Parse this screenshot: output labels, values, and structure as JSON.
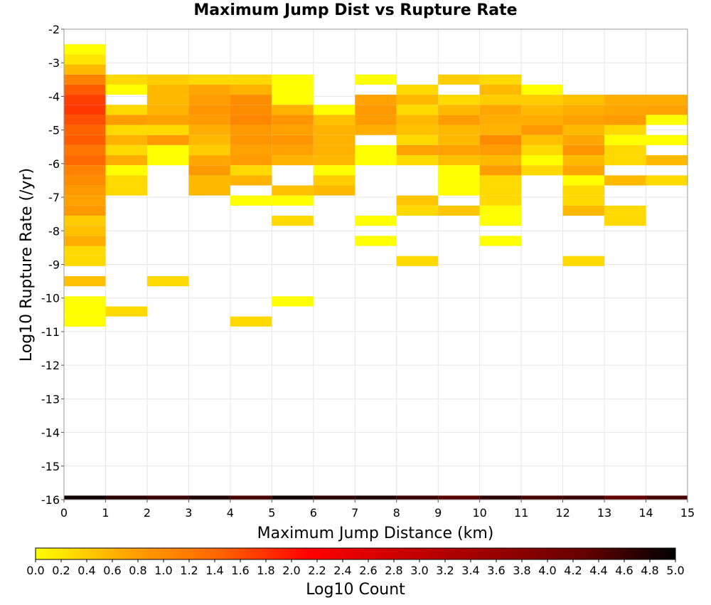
{
  "chart_data": {
    "type": "heatmap",
    "title": "Maximum Jump Dist vs Rupture Rate",
    "xlabel": "Maximum Jump Distance (km)",
    "ylabel": "Log10 Rupture Rate (/yr)",
    "xlim": [
      0,
      15
    ],
    "ylim": [
      -16,
      -2
    ],
    "x_ticks": [
      "0",
      "1",
      "2",
      "3",
      "4",
      "5",
      "6",
      "7",
      "8",
      "9",
      "10",
      "11",
      "12",
      "13",
      "14",
      "15"
    ],
    "y_ticks": [
      "-2",
      "-3",
      "-4",
      "-5",
      "-6",
      "-7",
      "-8",
      "-9",
      "-10",
      "-11",
      "-12",
      "-13",
      "-14",
      "-15",
      "-16"
    ],
    "colorbar": {
      "label": "Log10 Count",
      "min": 0.0,
      "max": 5.0,
      "ticks": [
        "0.0",
        "0.2",
        "0.4",
        "0.6",
        "0.8",
        "1.0",
        "1.2",
        "1.4",
        "1.6",
        "1.8",
        "2.0",
        "2.2",
        "2.4",
        "2.6",
        "2.8",
        "3.0",
        "3.2",
        "3.4",
        "3.6",
        "3.8",
        "4.0",
        "4.2",
        "4.4",
        "4.6",
        "4.8",
        "5.0"
      ],
      "colors": [
        "#ffff00",
        "#ffa500",
        "#ff6600",
        "#ff0000",
        "#cc0000",
        "#990000",
        "#660000",
        "#000000"
      ]
    },
    "bin_width_x": 1,
    "bin_height_y": 0.3,
    "columns": [
      {
        "x": 0,
        "cells": [
          [
            -2.6,
            0.0
          ],
          [
            -2.9,
            0.2
          ],
          [
            -3.2,
            0.55
          ],
          [
            -3.5,
            1.1
          ],
          [
            -3.8,
            1.5
          ],
          [
            -4.1,
            1.7
          ],
          [
            -4.4,
            1.75
          ],
          [
            -4.7,
            1.6
          ],
          [
            -5.0,
            1.45
          ],
          [
            -5.3,
            1.5
          ],
          [
            -5.6,
            1.25
          ],
          [
            -5.9,
            1.4
          ],
          [
            -6.2,
            1.1
          ],
          [
            -6.5,
            1.0
          ],
          [
            -6.8,
            0.85
          ],
          [
            -7.1,
            0.75
          ],
          [
            -7.4,
            0.85
          ],
          [
            -7.7,
            0.4
          ],
          [
            -8.0,
            0.5
          ],
          [
            -8.3,
            0.65
          ],
          [
            -8.6,
            0.3
          ],
          [
            -8.9,
            0.3
          ],
          [
            -9.5,
            0.5
          ],
          [
            -10.1,
            0.0
          ],
          [
            -10.4,
            0.0
          ],
          [
            -10.7,
            0.0
          ]
        ]
      },
      {
        "x": 1,
        "cells": [
          [
            -3.5,
            0.3
          ],
          [
            -3.8,
            0.0
          ],
          [
            -4.4,
            0.3
          ],
          [
            -4.7,
            0.8
          ],
          [
            -5.0,
            0.3
          ],
          [
            -5.3,
            0.6
          ],
          [
            -5.6,
            0.3
          ],
          [
            -5.9,
            0.65
          ],
          [
            -6.2,
            0.0
          ],
          [
            -6.5,
            0.3
          ],
          [
            -6.8,
            0.3
          ],
          [
            -10.4,
            0.3
          ]
        ]
      },
      {
        "x": 2,
        "cells": [
          [
            -3.5,
            0.4
          ],
          [
            -3.8,
            0.55
          ],
          [
            -4.1,
            0.55
          ],
          [
            -4.4,
            0.6
          ],
          [
            -4.7,
            0.75
          ],
          [
            -5.0,
            0.3
          ],
          [
            -5.3,
            0.85
          ],
          [
            -5.6,
            0.0
          ],
          [
            -5.9,
            0.0
          ],
          [
            -9.5,
            0.3
          ]
        ]
      },
      {
        "x": 3,
        "cells": [
          [
            -3.5,
            0.3
          ],
          [
            -3.8,
            0.7
          ],
          [
            -4.1,
            0.8
          ],
          [
            -4.4,
            0.9
          ],
          [
            -4.7,
            0.8
          ],
          [
            -5.0,
            0.65
          ],
          [
            -5.3,
            0.55
          ],
          [
            -5.6,
            0.4
          ],
          [
            -5.9,
            0.7
          ],
          [
            -6.2,
            0.85
          ],
          [
            -6.5,
            0.55
          ],
          [
            -6.8,
            0.55
          ]
        ]
      },
      {
        "x": 4,
        "cells": [
          [
            -3.5,
            0.3
          ],
          [
            -3.8,
            0.6
          ],
          [
            -4.1,
            1.0
          ],
          [
            -4.4,
            1.0
          ],
          [
            -4.7,
            1.05
          ],
          [
            -5.0,
            0.85
          ],
          [
            -5.3,
            0.9
          ],
          [
            -5.6,
            0.75
          ],
          [
            -5.9,
            0.8
          ],
          [
            -6.2,
            0.3
          ],
          [
            -6.5,
            0.6
          ],
          [
            -7.1,
            0.0
          ],
          [
            -10.7,
            0.3
          ]
        ]
      },
      {
        "x": 5,
        "cells": [
          [
            -3.5,
            0.0
          ],
          [
            -3.8,
            0.0
          ],
          [
            -4.1,
            0.0
          ],
          [
            -4.4,
            0.6
          ],
          [
            -4.7,
            0.9
          ],
          [
            -5.0,
            0.75
          ],
          [
            -5.3,
            0.9
          ],
          [
            -5.6,
            0.75
          ],
          [
            -5.9,
            0.6
          ],
          [
            -6.8,
            0.5
          ],
          [
            -7.1,
            0.0
          ],
          [
            -7.7,
            0.3
          ],
          [
            -10.1,
            0.0
          ]
        ]
      },
      {
        "x": 6,
        "cells": [
          [
            -4.4,
            0.0
          ],
          [
            -4.7,
            0.5
          ],
          [
            -5.0,
            0.6
          ],
          [
            -5.3,
            0.6
          ],
          [
            -5.6,
            0.6
          ],
          [
            -5.9,
            0.55
          ],
          [
            -6.2,
            0.0
          ],
          [
            -6.5,
            0.4
          ],
          [
            -6.8,
            0.55
          ]
        ]
      },
      {
        "x": 7,
        "cells": [
          [
            -3.5,
            0.0
          ],
          [
            -4.1,
            0.75
          ],
          [
            -4.4,
            0.85
          ],
          [
            -4.7,
            0.8
          ],
          [
            -5.0,
            0.65
          ],
          [
            -5.6,
            0.0
          ],
          [
            -5.9,
            0.0
          ],
          [
            -7.7,
            0.0
          ],
          [
            -8.3,
            0.0
          ]
        ]
      },
      {
        "x": 8,
        "cells": [
          [
            -3.8,
            0.3
          ],
          [
            -4.1,
            0.55
          ],
          [
            -4.4,
            0.3
          ],
          [
            -4.7,
            0.55
          ],
          [
            -5.0,
            0.5
          ],
          [
            -5.3,
            0.3
          ],
          [
            -5.6,
            0.75
          ],
          [
            -5.9,
            0.3
          ],
          [
            -7.1,
            0.45
          ],
          [
            -7.4,
            0.3
          ],
          [
            -8.9,
            0.3
          ]
        ]
      },
      {
        "x": 9,
        "cells": [
          [
            -3.5,
            0.4
          ],
          [
            -4.1,
            0.3
          ],
          [
            -4.4,
            0.55
          ],
          [
            -4.7,
            0.8
          ],
          [
            -5.0,
            0.55
          ],
          [
            -5.3,
            0.55
          ],
          [
            -5.6,
            0.75
          ],
          [
            -5.9,
            0.5
          ],
          [
            -6.2,
            0.0
          ],
          [
            -6.5,
            0.0
          ],
          [
            -6.8,
            0.0
          ],
          [
            -7.4,
            0.45
          ]
        ]
      },
      {
        "x": 10,
        "cells": [
          [
            -3.5,
            0.3
          ],
          [
            -3.8,
            0.55
          ],
          [
            -4.1,
            0.4
          ],
          [
            -4.4,
            0.7
          ],
          [
            -4.7,
            0.65
          ],
          [
            -5.0,
            0.6
          ],
          [
            -5.3,
            1.0
          ],
          [
            -5.6,
            0.8
          ],
          [
            -5.9,
            0.55
          ],
          [
            -6.2,
            0.8
          ],
          [
            -6.5,
            0.3
          ],
          [
            -6.8,
            0.3
          ],
          [
            -7.1,
            0.3
          ],
          [
            -7.4,
            0.0
          ],
          [
            -7.7,
            0.0
          ],
          [
            -8.3,
            0.0
          ]
        ]
      },
      {
        "x": 11,
        "cells": [
          [
            -3.8,
            0.0
          ],
          [
            -4.1,
            0.4
          ],
          [
            -4.4,
            0.55
          ],
          [
            -4.7,
            0.65
          ],
          [
            -5.0,
            0.85
          ],
          [
            -5.3,
            0.5
          ],
          [
            -5.6,
            0.3
          ],
          [
            -5.9,
            0.0
          ],
          [
            -6.2,
            0.3
          ]
        ]
      },
      {
        "x": 12,
        "cells": [
          [
            -4.1,
            0.5
          ],
          [
            -4.4,
            0.65
          ],
          [
            -4.7,
            0.75
          ],
          [
            -5.0,
            0.55
          ],
          [
            -5.3,
            0.7
          ],
          [
            -5.6,
            0.9
          ],
          [
            -5.9,
            0.55
          ],
          [
            -6.2,
            0.7
          ],
          [
            -6.5,
            0.0
          ],
          [
            -6.8,
            0.3
          ],
          [
            -7.1,
            0.3
          ],
          [
            -7.4,
            0.55
          ],
          [
            -8.9,
            0.3
          ]
        ]
      },
      {
        "x": 13,
        "cells": [
          [
            -4.1,
            0.65
          ],
          [
            -4.4,
            0.7
          ],
          [
            -4.7,
            0.8
          ],
          [
            -5.0,
            0.3
          ],
          [
            -5.3,
            0.0
          ],
          [
            -5.6,
            0.3
          ],
          [
            -5.9,
            0.3
          ],
          [
            -6.5,
            0.55
          ],
          [
            -7.4,
            0.3
          ],
          [
            -7.7,
            0.3
          ]
        ]
      },
      {
        "x": 14,
        "cells": [
          [
            -4.1,
            0.65
          ],
          [
            -4.4,
            0.75
          ],
          [
            -4.7,
            0.0
          ],
          [
            -5.3,
            0.0
          ],
          [
            -5.9,
            0.55
          ],
          [
            -6.5,
            0.3
          ]
        ]
      }
    ],
    "bottom_row": {
      "y": -16,
      "values": [
        4.9,
        4.7,
        4.6,
        4.8,
        4.5,
        4.9,
        4.7,
        4.8,
        4.6,
        4.4,
        4.7,
        4.5,
        4.6,
        4.3,
        4.5
      ]
    }
  }
}
